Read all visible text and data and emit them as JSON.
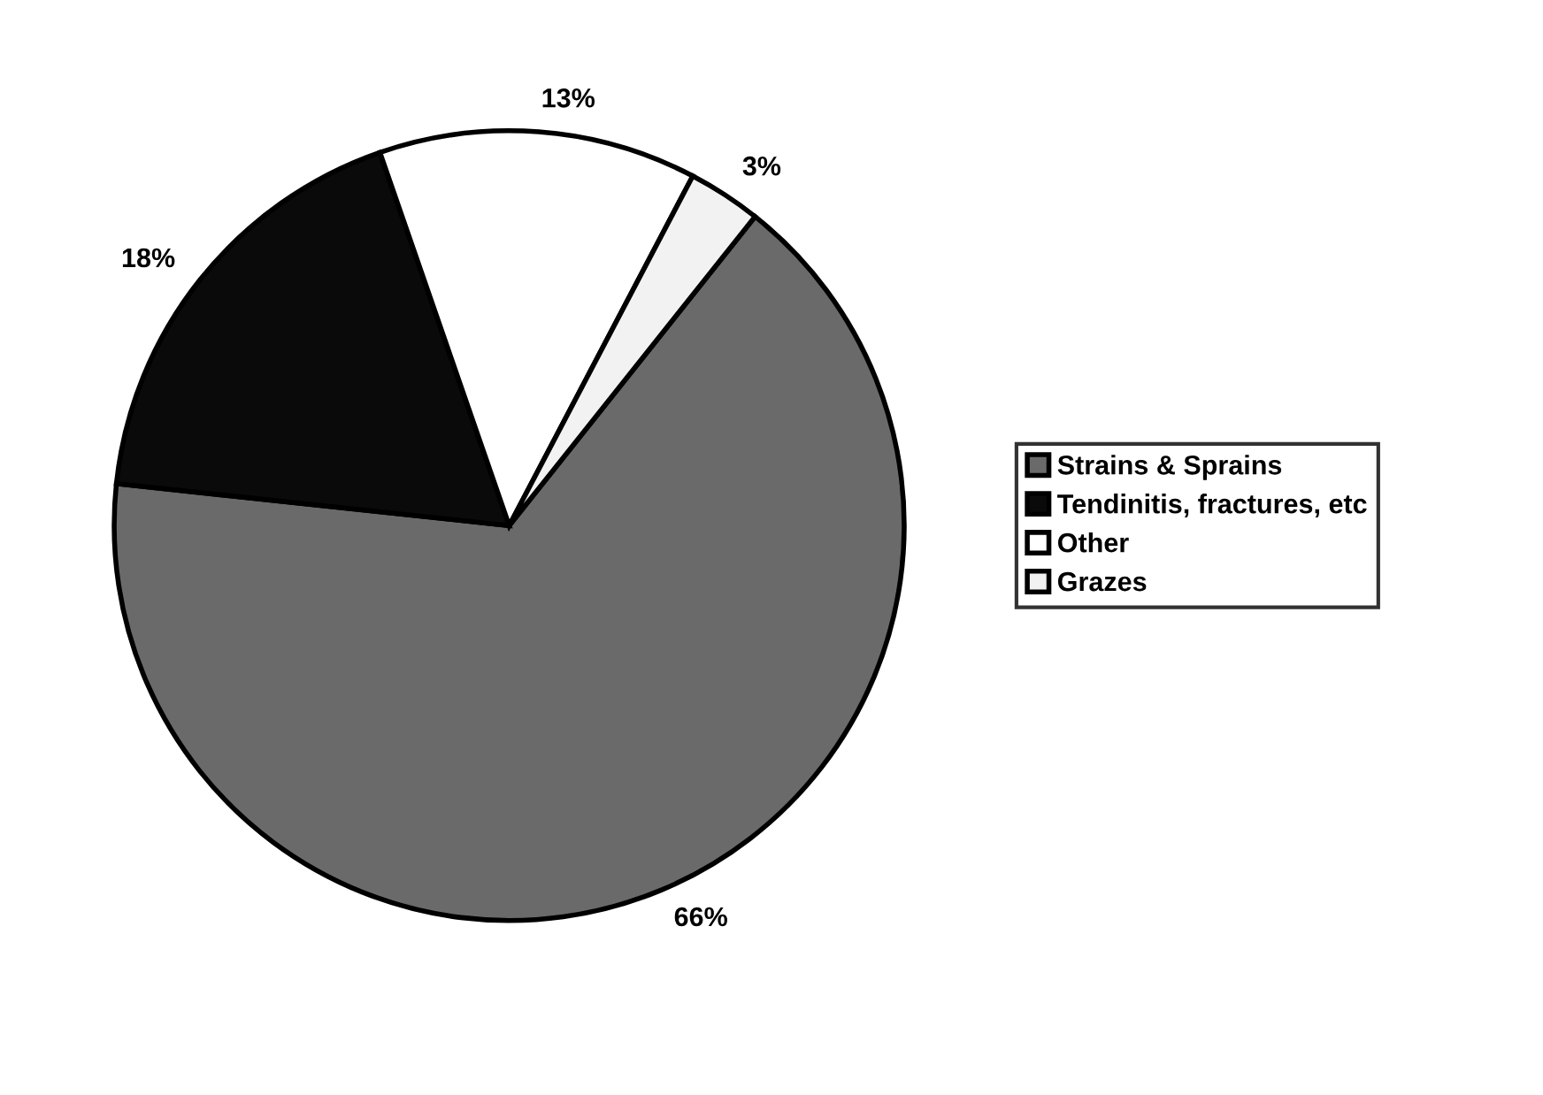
{
  "chart_data": {
    "type": "pie",
    "categories": [
      "Strains & Sprains",
      "Tendinitis, fractures, etc",
      "Other",
      "Grazes"
    ],
    "values": [
      66,
      18,
      13,
      3
    ],
    "value_labels": [
      "66%",
      "18%",
      "13%",
      "3%"
    ],
    "colors": [
      "#6a6a6a",
      "#0a0a0a",
      "#ffffff",
      "#f2f2f2"
    ],
    "legend": "right"
  }
}
